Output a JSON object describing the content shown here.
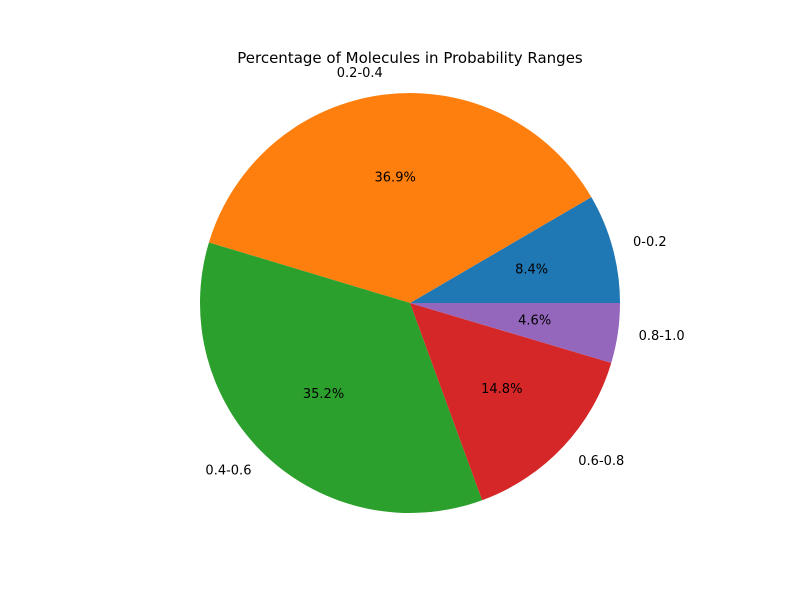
{
  "chart_data": {
    "type": "pie",
    "title": "Percentage of Molecules in Probability Ranges",
    "start_angle_deg": 0,
    "direction": "counterclockwise",
    "slices": [
      {
        "label": "0-0.2",
        "value": 8.4,
        "pct_label": "8.4%",
        "color": "#1f77b4"
      },
      {
        "label": "0.2-0.4",
        "value": 36.9,
        "pct_label": "36.9%",
        "color": "#ff7f0e"
      },
      {
        "label": "0.4-0.6",
        "value": 35.2,
        "pct_label": "35.2%",
        "color": "#2ca02c"
      },
      {
        "label": "0.6-0.8",
        "value": 14.8,
        "pct_label": "14.8%",
        "color": "#d62728"
      },
      {
        "label": "0.8-1.0",
        "value": 4.6,
        "pct_label": "4.6%",
        "color": "#9467bd"
      }
    ]
  }
}
